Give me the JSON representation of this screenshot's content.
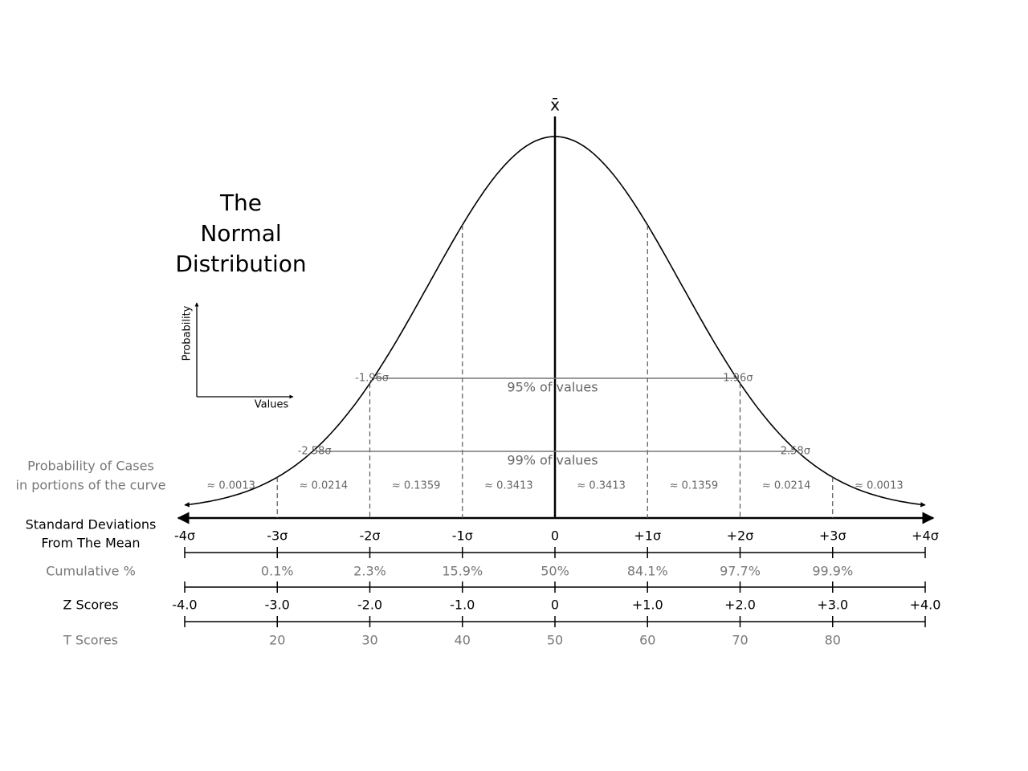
{
  "title": [
    "The",
    "Normal",
    "Distribution"
  ],
  "mean_symbol": "x̄",
  "inset": {
    "y_label": "Probability",
    "x_label": "Values"
  },
  "intervals": [
    {
      "low": "-1.96σ",
      "high": "1.96σ",
      "label": "95% of values"
    },
    {
      "low": "-2.58σ",
      "high": "2.58σ",
      "label": "99% of values"
    }
  ],
  "probability_of_cases": {
    "label": [
      "Probability of Cases",
      "in portions of the curve"
    ],
    "portions": [
      "≈ 0.0013",
      "≈ 0.0214",
      "≈ 0.1359",
      "≈ 0.3413",
      "≈ 0.3413",
      "≈ 0.1359",
      "≈ 0.0214",
      "≈ 0.0013"
    ]
  },
  "rows": [
    {
      "label": [
        "Standard Deviations",
        "From The Mean"
      ],
      "ticks": [
        "-4σ",
        "-3σ",
        "-2σ",
        "-1σ",
        "0",
        "+1σ",
        "+2σ",
        "+3σ",
        "+4σ"
      ]
    },
    {
      "label": [
        "Cumulative %"
      ],
      "ticks": [
        null,
        "0.1%",
        "2.3%",
        "15.9%",
        "50%",
        "84.1%",
        "97.7%",
        "99.9%",
        null
      ]
    },
    {
      "label": [
        "Z Scores"
      ],
      "ticks": [
        "-4.0",
        "-3.0",
        "-2.0",
        "-1.0",
        "0",
        "+1.0",
        "+2.0",
        "+3.0",
        "+4.0"
      ]
    },
    {
      "label": [
        "T Scores"
      ],
      "ticks": [
        null,
        "20",
        "30",
        "40",
        "50",
        "60",
        "70",
        "80",
        null
      ]
    }
  ]
}
